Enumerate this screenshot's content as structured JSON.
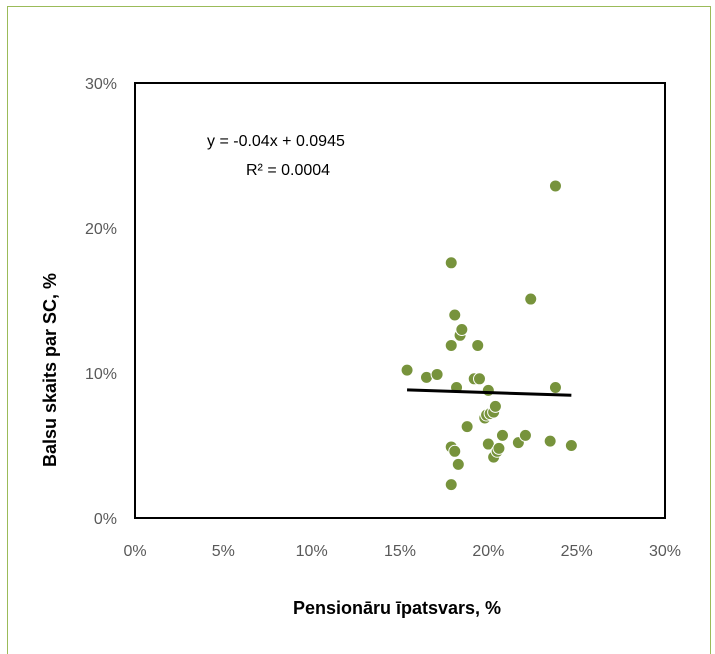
{
  "chart_data": {
    "type": "scatter",
    "title": "",
    "xlabel": "Pensionāru īpatsvars, %",
    "ylabel": "Balsu skaits par SC, %",
    "xlim": [
      0,
      0.3
    ],
    "ylim": [
      0,
      0.3
    ],
    "x_ticks": [
      "0%",
      "5%",
      "10%",
      "15%",
      "20%",
      "25%",
      "30%"
    ],
    "y_ticks": [
      "0%",
      "10%",
      "20%",
      "30%"
    ],
    "grid": false,
    "legend": "none",
    "series": [
      {
        "points": [
          [
            0.154,
            0.102
          ],
          [
            0.165,
            0.097
          ],
          [
            0.171,
            0.099
          ],
          [
            0.179,
            0.176
          ],
          [
            0.179,
            0.119
          ],
          [
            0.179,
            0.049
          ],
          [
            0.179,
            0.023
          ],
          [
            0.181,
            0.14
          ],
          [
            0.181,
            0.046
          ],
          [
            0.182,
            0.09
          ],
          [
            0.183,
            0.037
          ],
          [
            0.184,
            0.126
          ],
          [
            0.185,
            0.13
          ],
          [
            0.188,
            0.063
          ],
          [
            0.192,
            0.096
          ],
          [
            0.194,
            0.119
          ],
          [
            0.195,
            0.096
          ],
          [
            0.198,
            0.069
          ],
          [
            0.199,
            0.071
          ],
          [
            0.2,
            0.088
          ],
          [
            0.2,
            0.051
          ],
          [
            0.201,
            0.072
          ],
          [
            0.203,
            0.073
          ],
          [
            0.203,
            0.042
          ],
          [
            0.204,
            0.077
          ],
          [
            0.205,
            0.046
          ],
          [
            0.206,
            0.048
          ],
          [
            0.208,
            0.057
          ],
          [
            0.217,
            0.052
          ],
          [
            0.221,
            0.057
          ],
          [
            0.224,
            0.151
          ],
          [
            0.235,
            0.053
          ],
          [
            0.238,
            0.229
          ],
          [
            0.238,
            0.09
          ],
          [
            0.247,
            0.05
          ]
        ],
        "color": "#77933c"
      }
    ],
    "trendline": {
      "equation": "y = -0.04x + 0.0945",
      "r_squared": "R² = 0.0004",
      "slope": -0.04,
      "intercept": 0.0945,
      "x_range": [
        0.154,
        0.247
      ],
      "color": "#000000"
    }
  }
}
